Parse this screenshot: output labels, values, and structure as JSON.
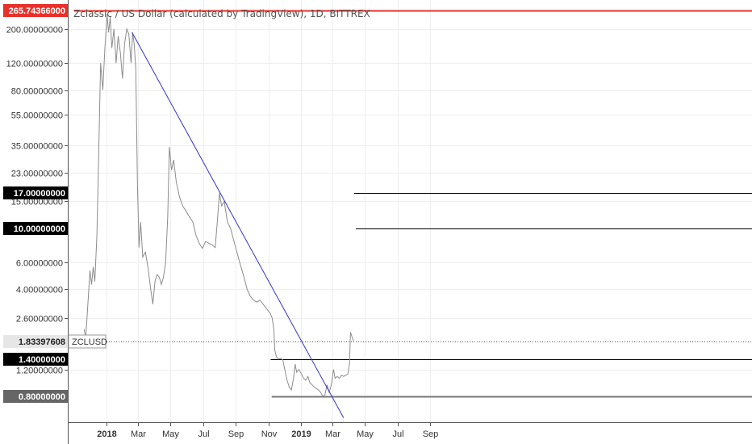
{
  "chart_data": {
    "type": "line",
    "title": "Zclassic / US Dollar (calculated by TradingView), 1D, BITTREX",
    "symbol": "ZCLUSD",
    "scale": "log",
    "y_ticks": [
      "200.00000000",
      "120.00000000",
      "80.00000000",
      "55.00000000",
      "35.00000000",
      "23.00000000",
      "15.00000000",
      "6.00000000",
      "4.00000000",
      "2.60000000",
      "1.20000000"
    ],
    "y_tick_values": [
      200,
      120,
      80,
      55,
      35,
      23,
      15,
      6,
      4,
      2.6,
      1.2
    ],
    "x_ticks": [
      "2018",
      "Mar",
      "May",
      "Jul",
      "Sep",
      "Nov",
      "2019",
      "Mar",
      "May",
      "Jul",
      "Sep"
    ],
    "x_tick_dates": [
      "2018-01-01",
      "2018-03-01",
      "2018-05-01",
      "2018-07-01",
      "2018-09-01",
      "2018-11-01",
      "2019-01-01",
      "2019-03-01",
      "2019-05-01",
      "2019-07-01",
      "2019-09-01"
    ],
    "bold_x_ticks": [
      "2018",
      "2019"
    ],
    "series": [
      {
        "color": "#8c8c8c",
        "points": [
          [
            "2017-11-20",
            2.2
          ],
          [
            "2017-11-23",
            1.9
          ],
          [
            "2017-11-27",
            3.2
          ],
          [
            "2017-12-01",
            5.3
          ],
          [
            "2017-12-04",
            4.3
          ],
          [
            "2017-12-07",
            5.6
          ],
          [
            "2017-12-10",
            4.5
          ],
          [
            "2017-12-14",
            9
          ],
          [
            "2017-12-18",
            40
          ],
          [
            "2017-12-21",
            120
          ],
          [
            "2017-12-25",
            80
          ],
          [
            "2017-12-29",
            150
          ],
          [
            "2018-01-02",
            250
          ],
          [
            "2018-01-05",
            190
          ],
          [
            "2018-01-08",
            240
          ],
          [
            "2018-01-11",
            150
          ],
          [
            "2018-01-15",
            200
          ],
          [
            "2018-01-19",
            120
          ],
          [
            "2018-01-23",
            180
          ],
          [
            "2018-01-27",
            140
          ],
          [
            "2018-01-31",
            95
          ],
          [
            "2018-02-04",
            160
          ],
          [
            "2018-02-08",
            200
          ],
          [
            "2018-02-12",
            185
          ],
          [
            "2018-02-16",
            120
          ],
          [
            "2018-02-19",
            190
          ],
          [
            "2018-02-22",
            160
          ],
          [
            "2018-02-25",
            110
          ],
          [
            "2018-02-28",
            20
          ],
          [
            "2018-03-03",
            7.5
          ],
          [
            "2018-03-06",
            11
          ],
          [
            "2018-03-10",
            6.5
          ],
          [
            "2018-03-15",
            7
          ],
          [
            "2018-03-20",
            5.5
          ],
          [
            "2018-03-25",
            4
          ],
          [
            "2018-03-29",
            3.2
          ],
          [
            "2018-04-02",
            4.5
          ],
          [
            "2018-04-06",
            5
          ],
          [
            "2018-04-10",
            4.8
          ],
          [
            "2018-04-14",
            4.3
          ],
          [
            "2018-04-18",
            4.8
          ],
          [
            "2018-04-22",
            6
          ],
          [
            "2018-04-26",
            12
          ],
          [
            "2018-04-29",
            34
          ],
          [
            "2018-05-03",
            24
          ],
          [
            "2018-05-07",
            28
          ],
          [
            "2018-05-12",
            20
          ],
          [
            "2018-05-18",
            16
          ],
          [
            "2018-05-24",
            14
          ],
          [
            "2018-05-30",
            13
          ],
          [
            "2018-06-05",
            12
          ],
          [
            "2018-06-12",
            11
          ],
          [
            "2018-06-18",
            9
          ],
          [
            "2018-06-24",
            8
          ],
          [
            "2018-06-30",
            7.4
          ],
          [
            "2018-07-06",
            8.2
          ],
          [
            "2018-07-12",
            8
          ],
          [
            "2018-07-18",
            7.8
          ],
          [
            "2018-07-24",
            7.5
          ],
          [
            "2018-07-28",
            11
          ],
          [
            "2018-08-01",
            17
          ],
          [
            "2018-08-05",
            14
          ],
          [
            "2018-08-10",
            15
          ],
          [
            "2018-08-16",
            11
          ],
          [
            "2018-08-22",
            10
          ],
          [
            "2018-08-30",
            7.8
          ],
          [
            "2018-09-08",
            6
          ],
          [
            "2018-09-16",
            4.8
          ],
          [
            "2018-09-22",
            4
          ],
          [
            "2018-09-28",
            3.6
          ],
          [
            "2018-10-04",
            3.4
          ],
          [
            "2018-10-10",
            3.3
          ],
          [
            "2018-10-16",
            3.4
          ],
          [
            "2018-10-22",
            3.2
          ],
          [
            "2018-10-28",
            3.0
          ],
          [
            "2018-11-04",
            2.8
          ],
          [
            "2018-11-08",
            2.6
          ],
          [
            "2018-11-11",
            2.2
          ],
          [
            "2018-11-13",
            1.6
          ],
          [
            "2018-11-16",
            1.45
          ],
          [
            "2018-11-20",
            1.4
          ],
          [
            "2018-11-24",
            1.42
          ],
          [
            "2018-11-28",
            1.38
          ],
          [
            "2018-12-02",
            1.18
          ],
          [
            "2018-12-06",
            1.02
          ],
          [
            "2018-12-10",
            0.92
          ],
          [
            "2018-12-14",
            0.88
          ],
          [
            "2018-12-18",
            1.05
          ],
          [
            "2018-12-21",
            1.3
          ],
          [
            "2018-12-24",
            1.15
          ],
          [
            "2018-12-28",
            1.2
          ],
          [
            "2019-01-02",
            1.12
          ],
          [
            "2019-01-06",
            1.05
          ],
          [
            "2019-01-10",
            1.02
          ],
          [
            "2019-01-14",
            1.08
          ],
          [
            "2019-01-18",
            0.98
          ],
          [
            "2019-01-22",
            0.95
          ],
          [
            "2019-01-26",
            0.92
          ],
          [
            "2019-01-30",
            0.9
          ],
          [
            "2019-02-03",
            0.88
          ],
          [
            "2019-02-07",
            0.85
          ],
          [
            "2019-02-11",
            0.8
          ],
          [
            "2019-02-15",
            0.82
          ],
          [
            "2019-02-19",
            0.95
          ],
          [
            "2019-02-23",
            0.85
          ],
          [
            "2019-02-27",
            0.95
          ],
          [
            "2019-03-03",
            1.2
          ],
          [
            "2019-03-06",
            1.05
          ],
          [
            "2019-03-10",
            1.08
          ],
          [
            "2019-03-14",
            1.05
          ],
          [
            "2019-03-18",
            1.1
          ],
          [
            "2019-03-22",
            1.08
          ],
          [
            "2019-03-26",
            1.1
          ],
          [
            "2019-03-30",
            1.12
          ],
          [
            "2019-04-02",
            1.3
          ],
          [
            "2019-04-04",
            2.1
          ],
          [
            "2019-04-06",
            2.0
          ],
          [
            "2019-04-08",
            1.9
          ],
          [
            "2019-04-10",
            1.84
          ]
        ]
      }
    ],
    "trendline": {
      "color": "#3333cc",
      "from": [
        "2018-02-18",
        190
      ],
      "to": [
        "2019-03-22",
        0.58
      ]
    },
    "horizontal_levels": [
      {
        "value": 265.74366,
        "label": "265.74366000",
        "color": "#e8312a",
        "start": "2017-11-01",
        "label_bg": "#e8312a",
        "label_color": "#ffffff"
      },
      {
        "value": 17,
        "label": "17.00000000",
        "color": "#000000",
        "start": "2019-04-11",
        "label_bg": "#000000",
        "label_color": "#ffffff"
      },
      {
        "value": 10,
        "label": "10.00000000",
        "color": "#000000",
        "start": "2019-04-14",
        "label_bg": "#000000",
        "label_color": "#ffffff"
      },
      {
        "value": 1.4,
        "label": "1.40000000",
        "color": "#000000",
        "start": "2018-11-05",
        "label_bg": "#000000",
        "label_color": "#ffffff"
      },
      {
        "value": 0.8,
        "label": "0.80000000",
        "color": "#777777",
        "start": "2018-11-07",
        "label_bg": "#666666",
        "label_color": "#ffffff",
        "thick": true
      }
    ],
    "last_price": {
      "value": 1.83397608,
      "label": "1.83397608"
    }
  }
}
